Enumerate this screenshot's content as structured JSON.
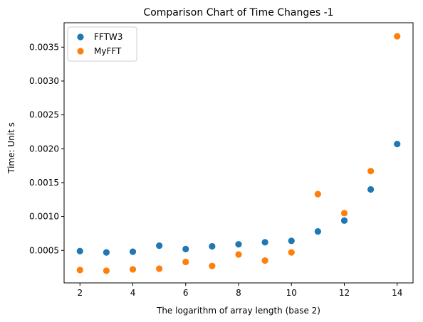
{
  "chart_data": {
    "type": "scatter",
    "title": "Comparison Chart of Time Changes -1",
    "xlabel": "The logarithm of array length (base 2)",
    "ylabel": "Time: Unit s",
    "xlim": [
      1.4,
      14.6
    ],
    "ylim": [
      2e-05,
      0.00386
    ],
    "x_ticks": [
      2,
      4,
      6,
      8,
      10,
      12,
      14
    ],
    "x_tick_labels": [
      "2",
      "4",
      "6",
      "8",
      "10",
      "12",
      "14"
    ],
    "y_ticks": [
      0.0005,
      0.001,
      0.0015,
      0.002,
      0.0025,
      0.003,
      0.0035
    ],
    "y_tick_labels": [
      "0.0005",
      "0.0010",
      "0.0015",
      "0.0020",
      "0.0025",
      "0.0030",
      "0.0035"
    ],
    "grid": false,
    "legend_position": "upper-left",
    "series": [
      {
        "name": "FFTW3",
        "color": "#1f77b4",
        "x": [
          2,
          3,
          4,
          5,
          6,
          7,
          8,
          9,
          10,
          11,
          12,
          13,
          14
        ],
        "y": [
          0.00049,
          0.00047,
          0.00048,
          0.00057,
          0.00052,
          0.00056,
          0.00059,
          0.00062,
          0.00064,
          0.00078,
          0.00094,
          0.0014,
          0.00207
        ]
      },
      {
        "name": "MyFFT",
        "color": "#ff7f0e",
        "x": [
          2,
          3,
          4,
          5,
          6,
          7,
          8,
          9,
          10,
          11,
          12,
          13,
          14
        ],
        "y": [
          0.00021,
          0.0002,
          0.00022,
          0.00023,
          0.00033,
          0.00027,
          0.00044,
          0.00035,
          0.00047,
          0.00133,
          0.00105,
          0.00167,
          0.00366
        ]
      }
    ]
  }
}
